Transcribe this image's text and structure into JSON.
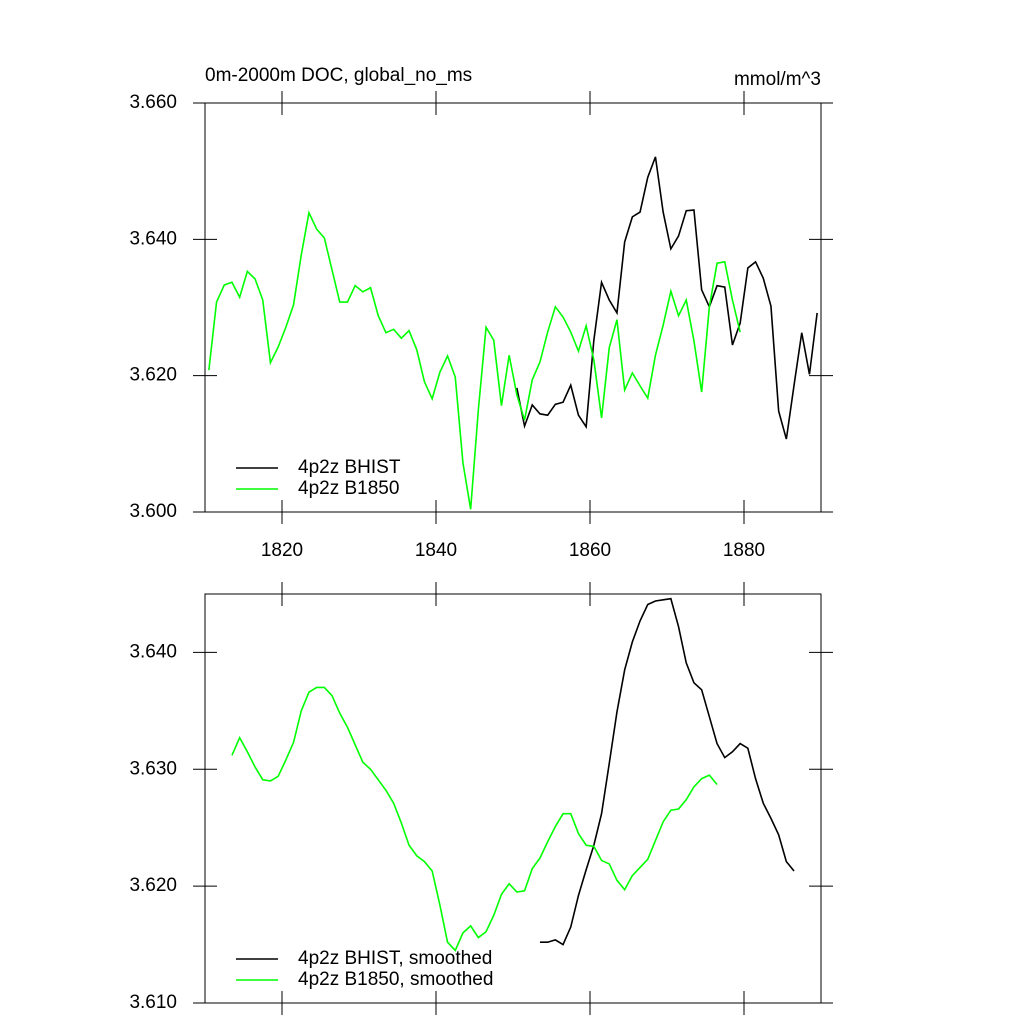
{
  "chart_data": [
    {
      "type": "line",
      "title": "0m-2000m DOC, global_no_ms",
      "units": "mmol/m^3",
      "xlim": [
        1810,
        1890
      ],
      "xticks": [
        1820,
        1840,
        1860,
        1880
      ],
      "ylim": [
        3.6,
        3.66
      ],
      "yticks": [
        {
          "value": 3.6,
          "label": "3.600"
        },
        {
          "value": 3.62,
          "label": "3.620"
        },
        {
          "value": 3.64,
          "label": "3.640"
        },
        {
          "value": 3.66,
          "label": "3.660"
        }
      ],
      "legend": "lower left",
      "series": [
        {
          "name": "4p2z BHIST",
          "color": "#000000",
          "x": [
            1850.5,
            1851.5,
            1852.5,
            1853.5,
            1854.5,
            1855.5,
            1856.5,
            1857.5,
            1858.5,
            1859.5,
            1860.5,
            1861.5,
            1862.5,
            1863.5,
            1864.5,
            1865.5,
            1866.5,
            1867.5,
            1868.5,
            1869.5,
            1870.5,
            1871.5,
            1872.5,
            1873.5,
            1874.5,
            1875.5,
            1876.5,
            1877.5,
            1878.5,
            1879.5,
            1880.5,
            1881.5,
            1882.5,
            1883.5,
            1884.5,
            1885.5,
            1886.5,
            1887.5,
            1888.5,
            1889.5
          ],
          "values": [
            3.6182,
            3.6126,
            3.6157,
            3.6144,
            3.6142,
            3.6158,
            3.6161,
            3.6186,
            3.6142,
            3.6125,
            3.6252,
            3.6337,
            3.6311,
            3.6292,
            3.6396,
            3.6433,
            3.644,
            3.6491,
            3.6521,
            3.644,
            3.6386,
            3.6405,
            3.6442,
            3.6443,
            3.6326,
            3.6301,
            3.6332,
            3.633,
            3.6245,
            3.6277,
            3.6358,
            3.6367,
            3.6343,
            3.6302,
            3.6148,
            3.6107,
            3.6186,
            3.6263,
            3.6202,
            3.6292
          ]
        },
        {
          "name": "4p2z B1850",
          "color": "#00ff00",
          "x": [
            1810.5,
            1811.5,
            1812.5,
            1813.5,
            1814.5,
            1815.5,
            1816.5,
            1817.5,
            1818.5,
            1819.5,
            1820.5,
            1821.5,
            1822.5,
            1823.5,
            1824.5,
            1825.5,
            1826.5,
            1827.5,
            1828.5,
            1829.5,
            1830.5,
            1831.5,
            1832.5,
            1833.5,
            1834.5,
            1835.5,
            1836.5,
            1837.5,
            1838.5,
            1839.5,
            1840.5,
            1841.5,
            1842.5,
            1843.5,
            1844.5,
            1845.5,
            1846.5,
            1847.5,
            1848.5,
            1849.5,
            1850.5,
            1851.5,
            1852.5,
            1853.5,
            1854.5,
            1855.5,
            1856.5,
            1857.5,
            1858.5,
            1859.5,
            1860.5,
            1861.5,
            1862.5,
            1863.5,
            1864.5,
            1865.5,
            1866.5,
            1867.5,
            1868.5,
            1869.5,
            1870.5,
            1871.5,
            1872.5,
            1873.5,
            1874.5,
            1875.5,
            1876.5,
            1877.5,
            1878.5,
            1879.5
          ],
          "values": [
            3.6208,
            3.6308,
            3.6333,
            3.6337,
            3.6315,
            3.6353,
            3.6342,
            3.6311,
            3.6219,
            3.6242,
            3.6271,
            3.6304,
            3.6377,
            3.6439,
            3.6415,
            3.6402,
            3.6355,
            3.6308,
            3.6308,
            3.6332,
            3.6323,
            3.6329,
            3.6288,
            3.6263,
            3.6268,
            3.6255,
            3.6266,
            3.6238,
            3.6191,
            3.6166,
            3.6205,
            3.6229,
            3.6198,
            3.6072,
            3.6004,
            3.615,
            3.6271,
            3.6252,
            3.6156,
            3.623,
            3.6172,
            3.6135,
            3.6194,
            3.622,
            3.6264,
            3.6301,
            3.6286,
            3.6264,
            3.6236,
            3.6273,
            3.6223,
            3.6138,
            3.6241,
            3.6282,
            3.6179,
            3.6204,
            3.6185,
            3.6167,
            3.623,
            3.6274,
            3.6324,
            3.6288,
            3.6311,
            3.6251,
            3.6176,
            3.6301,
            3.6365,
            3.6367,
            3.6311,
            3.6264
          ]
        }
      ]
    },
    {
      "type": "line",
      "xlim": [
        1810,
        1890
      ],
      "xticks": [
        1820,
        1840,
        1860,
        1880
      ],
      "ylim": [
        3.61,
        3.645
      ],
      "yticks": [
        {
          "value": 3.61,
          "label": "3.610"
        },
        {
          "value": 3.62,
          "label": "3.620"
        },
        {
          "value": 3.63,
          "label": "3.630"
        },
        {
          "value": 3.64,
          "label": "3.640"
        }
      ],
      "legend": "lower left",
      "series": [
        {
          "name": "4p2z BHIST, smoothed",
          "color": "#000000",
          "x": [
            1853.5,
            1854.5,
            1855.5,
            1856.5,
            1857.5,
            1858.5,
            1859.5,
            1860.5,
            1861.5,
            1862.5,
            1863.5,
            1864.5,
            1865.5,
            1866.5,
            1867.5,
            1868.5,
            1869.5,
            1870.5,
            1871.5,
            1872.5,
            1873.5,
            1874.5,
            1875.5,
            1876.5,
            1877.5,
            1878.5,
            1879.5,
            1880.5,
            1881.5,
            1882.5,
            1883.5,
            1884.5,
            1885.5,
            1886.5
          ],
          "values": [
            3.6152,
            3.6152,
            3.6154,
            3.615,
            3.6165,
            3.6192,
            3.6214,
            3.6235,
            3.6262,
            3.6305,
            3.6349,
            3.6385,
            3.6409,
            3.6427,
            3.6441,
            3.6444,
            3.6445,
            3.6446,
            3.6422,
            3.6391,
            3.6374,
            3.6368,
            3.6345,
            3.6322,
            3.631,
            3.6315,
            3.6322,
            3.6318,
            3.6292,
            3.6271,
            3.6258,
            3.6244,
            3.6221,
            3.6213
          ]
        },
        {
          "name": "4p2z B1850, smoothed",
          "color": "#00ff00",
          "x": [
            1813.5,
            1814.5,
            1815.5,
            1816.5,
            1817.5,
            1818.5,
            1819.5,
            1820.5,
            1821.5,
            1822.5,
            1823.5,
            1824.5,
            1825.5,
            1826.5,
            1827.5,
            1828.5,
            1829.5,
            1830.5,
            1831.5,
            1832.5,
            1833.5,
            1834.5,
            1835.5,
            1836.5,
            1837.5,
            1838.5,
            1839.5,
            1840.5,
            1841.5,
            1842.5,
            1843.5,
            1844.5,
            1845.5,
            1846.5,
            1847.5,
            1848.5,
            1849.5,
            1850.5,
            1851.5,
            1852.5,
            1853.5,
            1854.5,
            1855.5,
            1856.5,
            1857.5,
            1858.5,
            1859.5,
            1860.5,
            1861.5,
            1862.5,
            1863.5,
            1864.5,
            1865.5,
            1866.5,
            1867.5,
            1868.5,
            1869.5,
            1870.5,
            1871.5,
            1872.5,
            1873.5,
            1874.5,
            1875.5,
            1876.5
          ],
          "values": [
            3.6312,
            3.6327,
            3.6315,
            3.6302,
            3.6291,
            3.629,
            3.6294,
            3.6308,
            3.6323,
            3.635,
            3.6366,
            3.637,
            3.637,
            3.6363,
            3.6348,
            3.6336,
            3.6321,
            3.6306,
            3.63,
            3.6291,
            3.6282,
            3.6271,
            3.6254,
            3.6235,
            3.6226,
            3.6221,
            3.6213,
            3.6184,
            3.6152,
            3.6145,
            3.616,
            3.6166,
            3.6156,
            3.6161,
            3.6175,
            3.6193,
            3.6202,
            3.6195,
            3.6196,
            3.6215,
            3.6224,
            3.6238,
            3.6251,
            3.6262,
            3.6262,
            3.6245,
            3.6235,
            3.6234,
            3.6222,
            3.6219,
            3.6205,
            3.6197,
            3.6209,
            3.6216,
            3.6223,
            3.6239,
            3.6255,
            3.6265,
            3.6266,
            3.6274,
            3.6285,
            3.6292,
            3.6295,
            3.6287
          ]
        }
      ]
    }
  ]
}
